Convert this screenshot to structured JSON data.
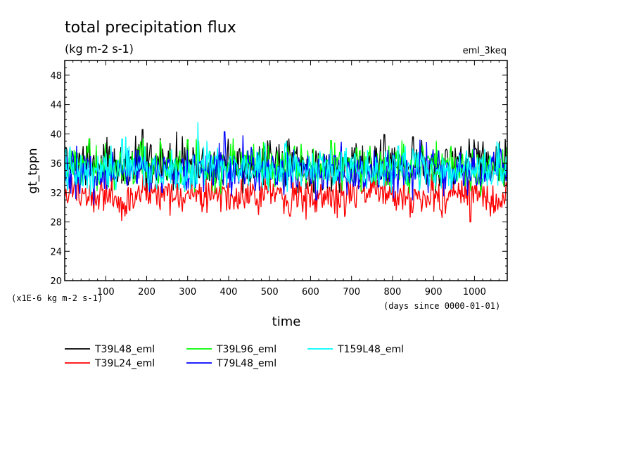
{
  "chart_data": {
    "type": "line",
    "title": "total precipitation flux",
    "subtitle": "(kg m-2 s-1)",
    "annotation_right": "eml_3keq",
    "xlabel": "time",
    "x_unit_label": "(days since 0000-01-01)",
    "ylabel": "gt_tppn",
    "y_unit_label": "(x1E-6 kg m-2 s-1)",
    "xlim": [
      0,
      1080
    ],
    "ylim": [
      20,
      50
    ],
    "x_ticks": [
      100,
      200,
      300,
      400,
      500,
      600,
      700,
      800,
      900,
      1000
    ],
    "y_ticks": [
      20,
      24,
      28,
      32,
      36,
      40,
      44,
      48
    ],
    "legend_position": "bottom",
    "series": [
      {
        "name": "T39L48_eml",
        "color": "#000000",
        "mean": 35.7,
        "amplitude": 1.6,
        "spikes": [
          [
            190,
            40.6
          ],
          [
            780,
            39.9
          ],
          [
            850,
            39.6
          ],
          [
            1075,
            39.3
          ]
        ]
      },
      {
        "name": "T39L24_eml",
        "color": "#ff0000",
        "mean": 31.6,
        "amplitude": 1.3,
        "spikes": [
          [
            95,
            29.5
          ],
          [
            550,
            28.8
          ],
          [
            990,
            28.0
          ]
        ]
      },
      {
        "name": "T39L96_eml",
        "color": "#00ff00",
        "mean": 35.6,
        "amplitude": 1.6,
        "spikes": [
          [
            60,
            39.3
          ],
          [
            300,
            39.2
          ],
          [
            650,
            39.1
          ]
        ]
      },
      {
        "name": "T79L48_eml",
        "color": "#0000ff",
        "mean": 35.0,
        "amplitude": 1.6,
        "spikes": [
          [
            390,
            40.3
          ]
        ]
      },
      {
        "name": "T159L48_eml",
        "color": "#00ffff",
        "mean": 35.3,
        "amplitude": 1.5,
        "spikes": [
          [
            325,
            41.6
          ],
          [
            140,
            39.3
          ]
        ]
      }
    ]
  }
}
